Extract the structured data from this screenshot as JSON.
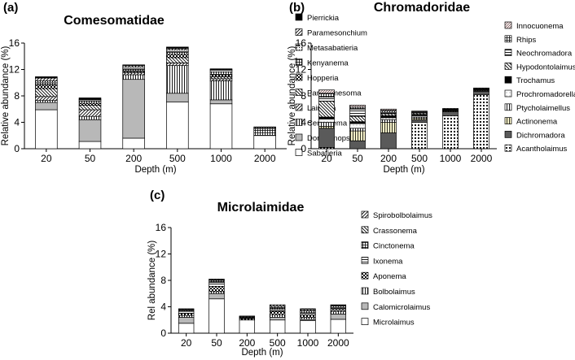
{
  "chart_data": [
    {
      "panel_label": "(a)",
      "type": "bar",
      "stacked": true,
      "title": "Comesomatidae",
      "xlabel": "Depth (m)",
      "ylabel": "Relative abundance (%)",
      "ylim": [
        0,
        16
      ],
      "yticks": [
        "0",
        "4",
        "8",
        "12",
        "16"
      ],
      "categories": [
        "20",
        "50",
        "200",
        "500",
        "1000",
        "2000"
      ],
      "legend_position": "right",
      "series": [
        {
          "name": "Sabatieria",
          "values": [
            5.9,
            1.1,
            1.6,
            7.1,
            6.8,
            2.0
          ]
        },
        {
          "name": "Dorylaimopsis",
          "values": [
            1.1,
            3.3,
            8.9,
            1.3,
            0.6,
            0.0
          ]
        },
        {
          "name": "Cervonema",
          "values": [
            0.3,
            0.5,
            0.7,
            4.2,
            2.9,
            0.0
          ]
        },
        {
          "name": "Laimella",
          "values": [
            0.6,
            1.0,
            0.3,
            0.4,
            0.3,
            0.0
          ]
        },
        {
          "name": "Paracomesoma",
          "values": [
            1.2,
            0.7,
            0.2,
            0.8,
            0.3,
            0.0
          ]
        },
        {
          "name": "Hopperia",
          "values": [
            0.5,
            0.3,
            0.1,
            0.5,
            0.3,
            0.0
          ]
        },
        {
          "name": "Kenyanema",
          "values": [
            0.4,
            0.3,
            0.3,
            0.4,
            0.4,
            1.0
          ]
        },
        {
          "name": "Metasabatieria",
          "values": [
            0.3,
            0.2,
            0.3,
            0.3,
            0.3,
            0.2
          ]
        },
        {
          "name": "Paramesonchium",
          "values": [
            0.4,
            0.1,
            0.2,
            0.2,
            0.1,
            0.0
          ]
        },
        {
          "name": "Pierrickia",
          "values": [
            0.2,
            0.2,
            0.1,
            0.2,
            0.1,
            0.1
          ]
        }
      ]
    },
    {
      "panel_label": "(b)",
      "type": "bar",
      "stacked": true,
      "title": "Chromadoridae",
      "xlabel": "Depth (m)",
      "ylabel": "Relative abundance (%)",
      "ylim": [
        0,
        16
      ],
      "yticks": [
        "0",
        "4",
        "8",
        "12",
        "16"
      ],
      "categories": [
        "20",
        "50",
        "200",
        "500",
        "1000",
        "2000"
      ],
      "legend_position": "right",
      "series": [
        {
          "name": "Acantholaimus",
          "values": [
            0.2,
            0.0,
            0.0,
            4.0,
            5.0,
            8.2
          ]
        },
        {
          "name": "Dichromadora",
          "values": [
            2.9,
            1.2,
            2.4,
            0.4,
            0.6,
            0.5
          ]
        },
        {
          "name": "Actinonema",
          "values": [
            0.3,
            1.5,
            1.6,
            0.2,
            0.1,
            0.1
          ]
        },
        {
          "name": "Ptycholaimellus",
          "values": [
            0.6,
            0.4,
            0.4,
            0.2,
            0.1,
            0.1
          ]
        },
        {
          "name": "Prochromadorella",
          "values": [
            0.5,
            0.7,
            0.3,
            0.2,
            0.1,
            0.1
          ]
        },
        {
          "name": "Trochamus",
          "values": [
            0.3,
            0.3,
            0.3,
            0.2,
            0.1,
            0.1
          ]
        },
        {
          "name": "Hypodontolaimus",
          "values": [
            2.4,
            0.8,
            0.3,
            0.2,
            0.1,
            0.1
          ]
        },
        {
          "name": "Neochromadora",
          "values": [
            0.6,
            1.1,
            0.2,
            0.1,
            0.0,
            0.0
          ]
        },
        {
          "name": "Rhips",
          "values": [
            0.6,
            0.3,
            0.3,
            0.1,
            0.0,
            0.0
          ]
        },
        {
          "name": "Innocuonema",
          "values": [
            0.5,
            0.3,
            0.2,
            0.1,
            0.0,
            0.0
          ]
        }
      ]
    },
    {
      "panel_label": "(c)",
      "type": "bar",
      "stacked": true,
      "title": "Microlaimidae",
      "xlabel": "Depth (m)",
      "ylabel": "Rel abundance (%)",
      "ylim": [
        0,
        16
      ],
      "yticks": [
        "0",
        "4",
        "8",
        "12",
        "16"
      ],
      "categories": [
        "20",
        "50",
        "200",
        "500",
        "1000",
        "2000"
      ],
      "legend_position": "right",
      "series": [
        {
          "name": "Microlaimus",
          "values": [
            1.5,
            5.2,
            2.0,
            2.0,
            1.9,
            2.1
          ]
        },
        {
          "name": "Calomicrolaimus",
          "values": [
            0.9,
            0.8,
            0.0,
            0.4,
            0.2,
            0.8
          ]
        },
        {
          "name": "Bolbolaimus",
          "values": [
            0.3,
            0.3,
            0.0,
            0.4,
            0.3,
            0.4
          ]
        },
        {
          "name": "Aponema",
          "values": [
            0.3,
            0.8,
            0.2,
            0.5,
            0.4,
            0.3
          ]
        },
        {
          "name": "Ixonema",
          "values": [
            0.3,
            0.6,
            0.1,
            0.3,
            0.3,
            0.3
          ]
        },
        {
          "name": "Cinctonema",
          "values": [
            0.2,
            0.3,
            0.1,
            0.3,
            0.3,
            0.2
          ]
        },
        {
          "name": "Crassonema",
          "values": [
            0.1,
            0.1,
            0.1,
            0.2,
            0.2,
            0.1
          ]
        },
        {
          "name": "Spirobolbolaimus",
          "values": [
            0.1,
            0.1,
            0.1,
            0.2,
            0.1,
            0.1
          ]
        }
      ]
    }
  ]
}
